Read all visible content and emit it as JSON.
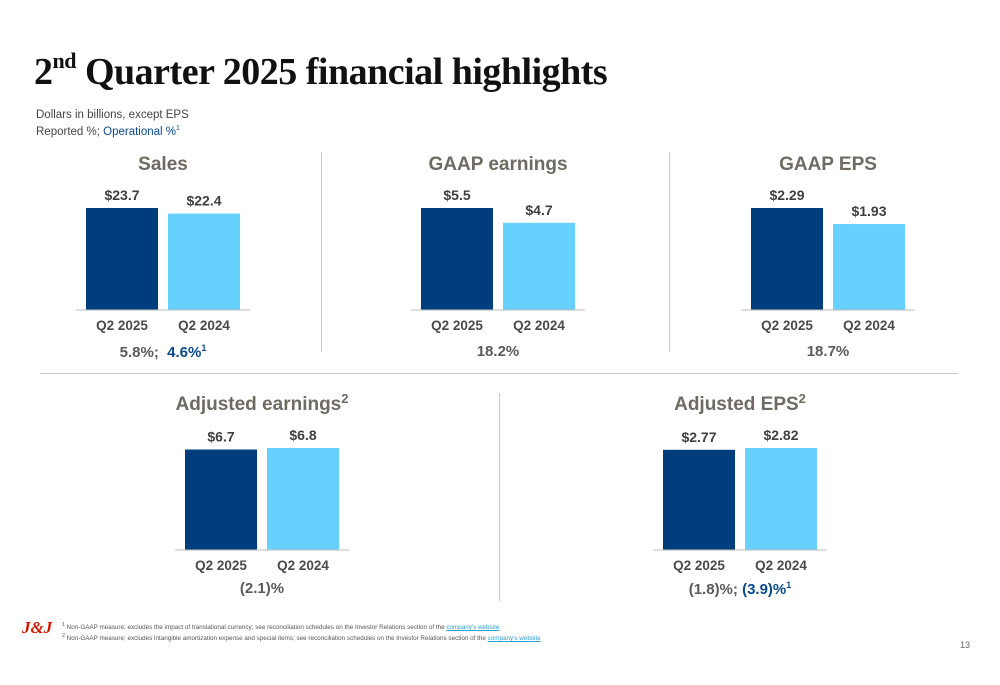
{
  "title": {
    "main": "Quarter 2025 financial highlights",
    "prefix": "2",
    "sup": "nd"
  },
  "subtitle": {
    "line1": "Dollars in billions, except EPS",
    "line2_reported": "Reported %; ",
    "line2_operational": "Operational %",
    "line2_sup": "1"
  },
  "colors": {
    "q2_2025": "#003d7c",
    "q2_2024": "#66d0ff",
    "operational": "#0a4a8c",
    "logo": "#d51900"
  },
  "chart_data": [
    {
      "type": "bar",
      "title": "Sales",
      "categories": [
        "Q2 2025",
        "Q2 2024"
      ],
      "values": [
        23.7,
        22.4
      ],
      "labels": [
        "$23.7",
        "$22.4"
      ]
    },
    {
      "type": "bar",
      "title": "GAAP earnings",
      "categories": [
        "Q2 2025",
        "Q2 2024"
      ],
      "values": [
        5.5,
        4.7
      ],
      "labels": [
        "$5.5",
        "$4.7"
      ]
    },
    {
      "type": "bar",
      "title": "GAAP EPS",
      "categories": [
        "Q2 2025",
        "Q2 2024"
      ],
      "values": [
        2.29,
        1.93
      ],
      "labels": [
        "$2.29",
        "$1.93"
      ]
    },
    {
      "type": "bar",
      "title": "Adjusted earnings",
      "title_sup": "2",
      "categories": [
        "Q2 2025",
        "Q2 2024"
      ],
      "values": [
        6.7,
        6.8
      ],
      "labels": [
        "$6.7",
        "$6.8"
      ]
    },
    {
      "type": "bar",
      "title": "Adjusted EPS",
      "title_sup": "2",
      "categories": [
        "Q2 2025",
        "Q2 2024"
      ],
      "values": [
        2.77,
        2.82
      ],
      "labels": [
        "$2.77",
        "$2.82"
      ]
    }
  ],
  "growth": {
    "sales_reported": "5.8%;",
    "sales_operational": "4.6%",
    "sales_sup": "1",
    "gaap_earnings": "18.2%",
    "gaap_eps": "18.7%",
    "adj_earnings": "(2.1)%",
    "adj_eps_reported": "(1.8)%;",
    "adj_eps_operational": "(3.9)%",
    "adj_eps_sup": "1"
  },
  "footer": {
    "logo": "J&J",
    "note1_sup": "1",
    "note1": "Non-GAAP measure; excludes the impact of translational currency; see reconciliation schedules on the Investor Relations section of the ",
    "note1_link": "company's website",
    "note2_sup": "2",
    "note2": "Non-GAAP measure; excludes intangible amortization expense and special items; see reconciliation schedules on the Investor Relations section of the  ",
    "note2_link": "company's website",
    "page_number": "13"
  }
}
